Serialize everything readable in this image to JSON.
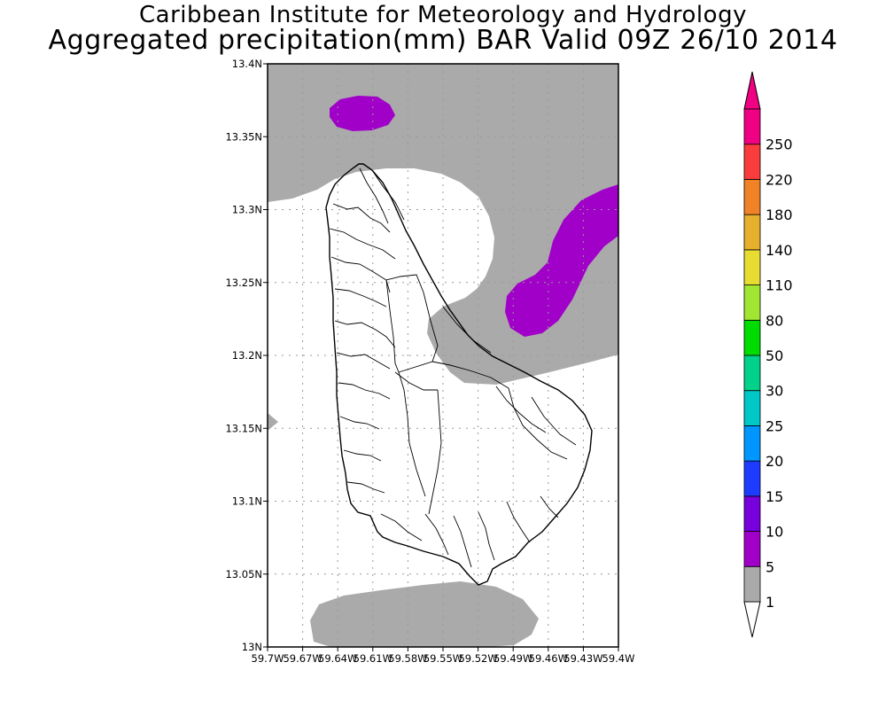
{
  "titles": {
    "line1": "Caribbean Institute for Meteorology and Hydrology",
    "line2": "Aggregated precipitation(mm) BAR Valid 09Z 26/10 2014"
  },
  "map": {
    "region": "Barbados",
    "lat_range": [
      13.0,
      13.4
    ],
    "lon_range": [
      -59.7,
      -59.4
    ],
    "gridlines": true,
    "lat_labels": [
      "13N",
      "13.05N",
      "13.1N",
      "13.15N",
      "13.2N",
      "13.25N",
      "13.3N",
      "13.35N",
      "13.4N"
    ],
    "lon_labels": [
      "59.7W",
      "59.67W",
      "59.64W",
      "59.61W",
      "59.58W",
      "59.55W",
      "59.52W",
      "59.49W",
      "59.46W",
      "59.43W",
      "59.4W"
    ]
  },
  "colorbar": {
    "orientation": "vertical",
    "placement": "right",
    "levels": [
      "1",
      "5",
      "10",
      "15",
      "20",
      "25",
      "30",
      "50",
      "80",
      "110",
      "140",
      "180",
      "220",
      "250"
    ],
    "colors": [
      "#aaaaaa",
      "#a000c8",
      "#7800dc",
      "#1e3cff",
      "#0096ff",
      "#00c8c8",
      "#00d28c",
      "#00dc00",
      "#a0e632",
      "#e6dc32",
      "#e6af2d",
      "#f08228",
      "#fa3c3c",
      "#f00082"
    ],
    "under_color": "#ffffff",
    "over_color": "#f00082"
  }
}
